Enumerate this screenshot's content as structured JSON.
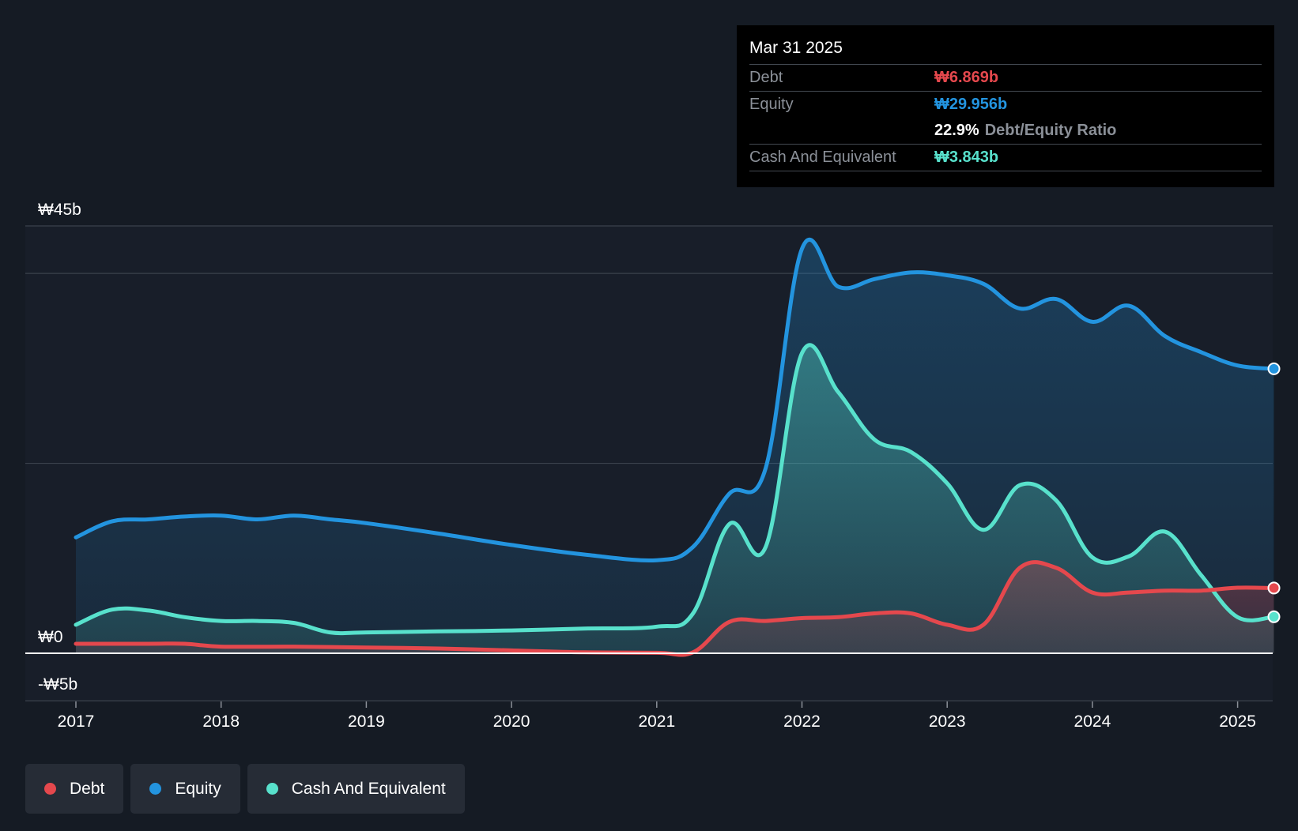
{
  "colors": {
    "debt": "#e5484d",
    "equity": "#2394df",
    "cash": "#58e1cc",
    "background": "#151b24",
    "plot_background": "#181e29"
  },
  "tooltip": {
    "date": "Mar 31 2025",
    "rows": {
      "debt": {
        "label": "Debt",
        "value": "₩6.869b"
      },
      "equity": {
        "label": "Equity",
        "value": "₩29.956b"
      },
      "ratio": {
        "value": "22.9%",
        "label": "Debt/Equity Ratio"
      },
      "cash": {
        "label": "Cash And Equivalent",
        "value": "₩3.843b"
      }
    }
  },
  "legend": [
    {
      "label": "Debt",
      "color": "#e5484d"
    },
    {
      "label": "Equity",
      "color": "#2394df"
    },
    {
      "label": "Cash And Equivalent",
      "color": "#58e1cc"
    }
  ],
  "chart_data": {
    "type": "area",
    "x_tick_labels": [
      "2017",
      "2018",
      "2019",
      "2020",
      "2021",
      "2022",
      "2023",
      "2024",
      "2025"
    ],
    "y_tick_labels": [
      {
        "value": 45,
        "label": "₩45b"
      },
      {
        "value": 0,
        "label": "₩0"
      },
      {
        "value": -5,
        "label": "-₩5b"
      }
    ],
    "ylim": [
      -5,
      45
    ],
    "xlim": [
      2016.65,
      2025.25
    ],
    "grid": true,
    "legend_position": "bottom-left",
    "series": [
      {
        "name": "Equity",
        "color": "#2394df",
        "points": [
          [
            2017.0,
            12.2
          ],
          [
            2017.25,
            13.9
          ],
          [
            2017.5,
            14.1
          ],
          [
            2017.75,
            14.4
          ],
          [
            2018.0,
            14.5
          ],
          [
            2018.25,
            14.1
          ],
          [
            2018.5,
            14.5
          ],
          [
            2018.75,
            14.1
          ],
          [
            2019.0,
            13.7
          ],
          [
            2019.5,
            12.6
          ],
          [
            2020.0,
            11.4
          ],
          [
            2020.5,
            10.4
          ],
          [
            2021.0,
            9.8
          ],
          [
            2021.25,
            11.2
          ],
          [
            2021.5,
            16.8
          ],
          [
            2021.75,
            19.5
          ],
          [
            2022.0,
            42.6
          ],
          [
            2022.25,
            38.6
          ],
          [
            2022.5,
            39.4
          ],
          [
            2022.75,
            40.1
          ],
          [
            2023.0,
            39.8
          ],
          [
            2023.25,
            38.9
          ],
          [
            2023.5,
            36.3
          ],
          [
            2023.75,
            37.3
          ],
          [
            2024.0,
            34.9
          ],
          [
            2024.25,
            36.6
          ],
          [
            2024.5,
            33.4
          ],
          [
            2024.75,
            31.7
          ],
          [
            2025.0,
            30.3
          ],
          [
            2025.25,
            29.956
          ]
        ]
      },
      {
        "name": "Cash And Equivalent",
        "color": "#58e1cc",
        "points": [
          [
            2017.0,
            3.0
          ],
          [
            2017.25,
            4.6
          ],
          [
            2017.5,
            4.5
          ],
          [
            2017.75,
            3.8
          ],
          [
            2018.0,
            3.4
          ],
          [
            2018.25,
            3.4
          ],
          [
            2018.5,
            3.2
          ],
          [
            2018.75,
            2.2
          ],
          [
            2019.0,
            2.2
          ],
          [
            2019.5,
            2.3
          ],
          [
            2020.0,
            2.4
          ],
          [
            2020.5,
            2.6
          ],
          [
            2021.0,
            2.8
          ],
          [
            2021.25,
            4.2
          ],
          [
            2021.5,
            13.6
          ],
          [
            2021.75,
            11.2
          ],
          [
            2022.0,
            31.6
          ],
          [
            2022.25,
            27.5
          ],
          [
            2022.5,
            22.5
          ],
          [
            2022.75,
            21.2
          ],
          [
            2023.0,
            17.9
          ],
          [
            2023.25,
            13.0
          ],
          [
            2023.5,
            17.7
          ],
          [
            2023.75,
            16.1
          ],
          [
            2024.0,
            10.1
          ],
          [
            2024.25,
            10.2
          ],
          [
            2024.5,
            12.8
          ],
          [
            2024.75,
            8.2
          ],
          [
            2025.0,
            3.8
          ],
          [
            2025.25,
            3.843
          ]
        ]
      },
      {
        "name": "Debt",
        "color": "#e5484d",
        "points": [
          [
            2017.0,
            1.0
          ],
          [
            2017.5,
            1.0
          ],
          [
            2017.75,
            1.0
          ],
          [
            2018.0,
            0.7
          ],
          [
            2018.5,
            0.7
          ],
          [
            2019.0,
            0.6
          ],
          [
            2019.5,
            0.5
          ],
          [
            2020.0,
            0.3
          ],
          [
            2020.5,
            0.1
          ],
          [
            2021.0,
            0.05
          ],
          [
            2021.25,
            0.1
          ],
          [
            2021.5,
            3.3
          ],
          [
            2021.75,
            3.4
          ],
          [
            2022.0,
            3.7
          ],
          [
            2022.25,
            3.8
          ],
          [
            2022.5,
            4.2
          ],
          [
            2022.75,
            4.2
          ],
          [
            2023.0,
            3.0
          ],
          [
            2023.25,
            3.0
          ],
          [
            2023.5,
            9.0
          ],
          [
            2023.75,
            9.0
          ],
          [
            2024.0,
            6.4
          ],
          [
            2024.25,
            6.4
          ],
          [
            2024.5,
            6.6
          ],
          [
            2024.75,
            6.6
          ],
          [
            2025.0,
            6.9
          ],
          [
            2025.25,
            6.869
          ]
        ]
      }
    ]
  }
}
